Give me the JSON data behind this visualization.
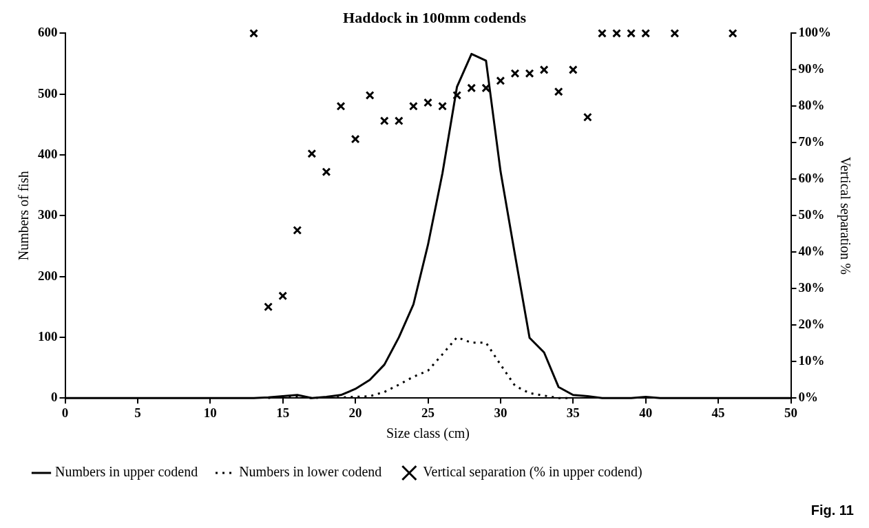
{
  "chart_data": {
    "type": "line",
    "title": "Haddock in 100mm codends",
    "xlabel": "Size class (cm)",
    "ylabel": "Numbers of fish",
    "y2label": "Vertical separation %",
    "xlim": [
      0,
      50
    ],
    "xticks": [
      0,
      5,
      10,
      15,
      20,
      25,
      30,
      35,
      40,
      45,
      50
    ],
    "ylim": [
      0,
      600
    ],
    "yticks": [
      0,
      100,
      200,
      300,
      400,
      500,
      600
    ],
    "y2lim": [
      0,
      100
    ],
    "y2ticks": [
      {
        "value": 0,
        "label": "0%"
      },
      {
        "value": 10,
        "label": "10%"
      },
      {
        "value": 20,
        "label": "20%"
      },
      {
        "value": 30,
        "label": "30%"
      },
      {
        "value": 40,
        "label": "40%"
      },
      {
        "value": 50,
        "label": "50%"
      },
      {
        "value": 60,
        "label": "60%"
      },
      {
        "value": 70,
        "label": "70%"
      },
      {
        "value": 80,
        "label": "80%"
      },
      {
        "value": 90,
        "label": "90%"
      },
      {
        "value": 100,
        "label": "100%"
      }
    ],
    "grid": false,
    "legend": "bottom left",
    "marker": "none",
    "series": [
      {
        "name": "Numbers in upper codend",
        "color": "#000000",
        "line_style": "solid",
        "x": [
          0,
          13,
          14,
          15,
          16,
          17,
          18,
          19,
          20,
          21,
          22,
          23,
          24,
          25,
          26,
          27,
          28,
          29,
          30,
          31,
          32,
          33,
          34,
          35,
          36,
          37,
          38,
          39,
          40,
          41,
          50
        ],
        "values": [
          0,
          0,
          1,
          3,
          5,
          0,
          2,
          5,
          15,
          30,
          55,
          100,
          154,
          252,
          370,
          512,
          566,
          555,
          373,
          235,
          99,
          75,
          18,
          5,
          3,
          0,
          0,
          0,
          2,
          0,
          0
        ]
      },
      {
        "name": "Numbers in lower codend",
        "color": "#000000",
        "line_style": "dotted",
        "x": [
          14,
          15,
          16,
          17,
          18,
          19,
          20,
          21,
          22,
          23,
          24,
          25,
          26,
          27,
          28,
          29,
          30,
          31,
          32,
          33,
          34,
          35
        ],
        "values": [
          0,
          3,
          2,
          0,
          1,
          1,
          2,
          3,
          10,
          22,
          35,
          45,
          72,
          100,
          91,
          91,
          55,
          20,
          8,
          4,
          0,
          0
        ]
      },
      {
        "name": "Vertical separation (% in upper codend)",
        "color": "#000000",
        "type": "scatter",
        "axis": "y2",
        "marker": "cross",
        "x": [
          13,
          14,
          15,
          16,
          17,
          18,
          19,
          20,
          21,
          22,
          23,
          24,
          25,
          26,
          27,
          28,
          29,
          30,
          31,
          32,
          33,
          34,
          35,
          36,
          37,
          38,
          39,
          40,
          42,
          46
        ],
        "values": [
          100,
          25,
          28,
          46,
          67,
          62,
          80,
          71,
          83,
          76,
          76,
          80,
          81,
          80,
          83,
          85,
          85,
          87,
          89,
          89,
          90,
          84,
          90,
          77,
          100,
          100,
          100,
          100,
          100,
          100
        ]
      }
    ],
    "annotations": [
      "Fig. 11"
    ]
  }
}
